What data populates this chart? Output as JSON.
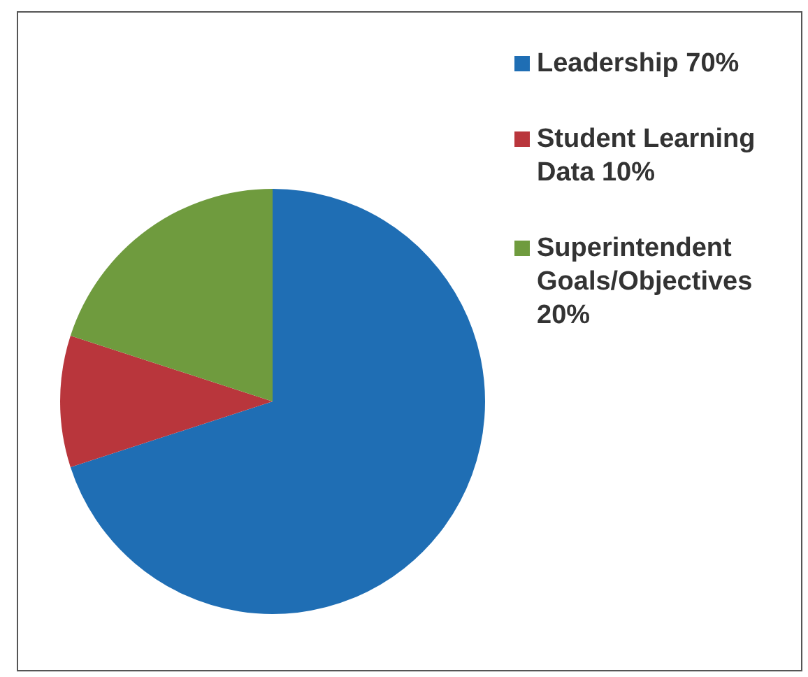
{
  "chart_data": {
    "type": "pie",
    "categories": [
      "Leadership 70%",
      "Student Learning Data 10%",
      "Superintendent Goals/Objectives 20%"
    ],
    "values": [
      70,
      10,
      20
    ],
    "colors": [
      "#1f6eb4",
      "#b9363c",
      "#6f9b3e"
    ],
    "legend": "right"
  }
}
